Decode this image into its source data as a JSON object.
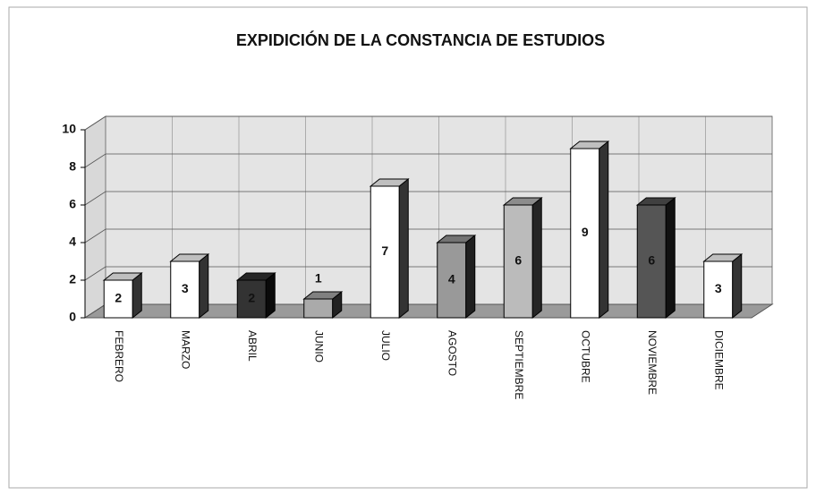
{
  "chart_data": {
    "type": "bar3d",
    "title": "EXPIDICIÓN DE LA CONSTANCIA DE ESTUDIOS",
    "categories": [
      "FEBRERO",
      "MARZO",
      "ABRIL",
      "JUNIO",
      "JULIO",
      "AGOSTO",
      "SEPTIEMBRE",
      "OCTUBRE",
      "NOVIEMBRE",
      "DICIEMBRE"
    ],
    "values": [
      2,
      3,
      2,
      1,
      7,
      4,
      6,
      9,
      6,
      3
    ],
    "colors": [
      "#ffffff",
      "#ffffff",
      "#333333",
      "#aaaaaa",
      "#ffffff",
      "#999999",
      "#bbbbbb",
      "#ffffff",
      "#555555",
      "#ffffff"
    ],
    "ylim": [
      0,
      10
    ],
    "yticks": [
      0,
      2,
      4,
      6,
      8,
      10
    ],
    "grid": true
  }
}
